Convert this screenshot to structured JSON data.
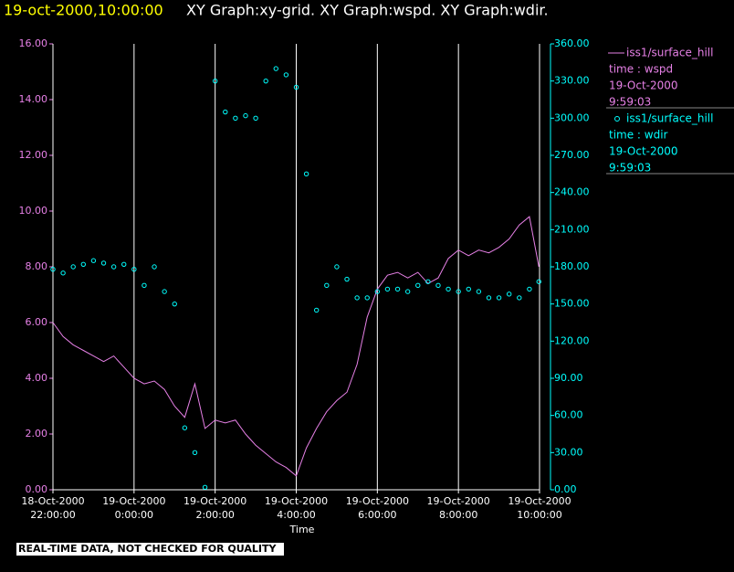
{
  "chart_data": {
    "type": "line",
    "title": "19-oct-2000,10:00:00",
    "subtitle": "XY Graph:xy-grid.  XY Graph:wspd.  XY Graph:wdir.",
    "x_label": "Time",
    "footer": "REAL-TIME DATA, NOT CHECKED FOR QUALITY",
    "grid": true,
    "xlim": [
      "2000-10-18T22:00:00",
      "2000-10-19T10:00:00"
    ],
    "xticks": [
      {
        "value": "2000-10-18T22:00:00",
        "label": "18-Oct-2000\n22:00:00"
      },
      {
        "value": "2000-10-19T00:00:00",
        "label": "19-Oct-2000\n0:00:00"
      },
      {
        "value": "2000-10-19T02:00:00",
        "label": "19-Oct-2000\n2:00:00"
      },
      {
        "value": "2000-10-19T04:00:00",
        "label": "19-Oct-2000\n4:00:00"
      },
      {
        "value": "2000-10-19T06:00:00",
        "label": "19-Oct-2000\n6:00:00"
      },
      {
        "value": "2000-10-19T08:00:00",
        "label": "19-Oct-2000\n8:00:00"
      },
      {
        "value": "2000-10-19T10:00:00",
        "label": "19-Oct-2000\n10:00:00"
      }
    ],
    "ylim": [
      0,
      16
    ],
    "yticks": [
      {
        "value": 0,
        "label": "0.00"
      },
      {
        "value": 2,
        "label": "2.00"
      },
      {
        "value": 4,
        "label": "4.00"
      },
      {
        "value": 6,
        "label": "6.00"
      },
      {
        "value": 8,
        "label": "8.00"
      },
      {
        "value": 10,
        "label": "10.00"
      },
      {
        "value": 12,
        "label": "12.00"
      },
      {
        "value": 14,
        "label": "14.00"
      },
      {
        "value": 16,
        "label": "16.00"
      }
    ],
    "y2lim": [
      0,
      360
    ],
    "y2ticks": [
      {
        "value": 0,
        "label": "0.00"
      },
      {
        "value": 30,
        "label": "30.00"
      },
      {
        "value": 60,
        "label": "60.00"
      },
      {
        "value": 90,
        "label": "90.00"
      },
      {
        "value": 120,
        "label": "120.00"
      },
      {
        "value": 150,
        "label": "150.00"
      },
      {
        "value": 180,
        "label": "180.00"
      },
      {
        "value": 210,
        "label": "210.00"
      },
      {
        "value": 240,
        "label": "240.00"
      },
      {
        "value": 270,
        "label": "270.00"
      },
      {
        "value": 300,
        "label": "300.00"
      },
      {
        "value": 330,
        "label": "330.00"
      },
      {
        "value": 360,
        "label": "360.00"
      }
    ],
    "x": [
      "2000-10-18T22:00:00",
      "2000-10-18T22:15:00",
      "2000-10-18T22:30:00",
      "2000-10-18T22:45:00",
      "2000-10-18T23:00:00",
      "2000-10-18T23:15:00",
      "2000-10-18T23:30:00",
      "2000-10-18T23:45:00",
      "2000-10-19T00:00:00",
      "2000-10-19T00:15:00",
      "2000-10-19T00:30:00",
      "2000-10-19T00:45:00",
      "2000-10-19T01:00:00",
      "2000-10-19T01:15:00",
      "2000-10-19T01:30:00",
      "2000-10-19T01:45:00",
      "2000-10-19T02:00:00",
      "2000-10-19T02:15:00",
      "2000-10-19T02:30:00",
      "2000-10-19T02:45:00",
      "2000-10-19T03:00:00",
      "2000-10-19T03:15:00",
      "2000-10-19T03:30:00",
      "2000-10-19T03:45:00",
      "2000-10-19T04:00:00",
      "2000-10-19T04:15:00",
      "2000-10-19T04:30:00",
      "2000-10-19T04:45:00",
      "2000-10-19T05:00:00",
      "2000-10-19T05:15:00",
      "2000-10-19T05:30:00",
      "2000-10-19T05:45:00",
      "2000-10-19T06:00:00",
      "2000-10-19T06:15:00",
      "2000-10-19T06:30:00",
      "2000-10-19T06:45:00",
      "2000-10-19T07:00:00",
      "2000-10-19T07:15:00",
      "2000-10-19T07:30:00",
      "2000-10-19T07:45:00",
      "2000-10-19T08:00:00",
      "2000-10-19T08:15:00",
      "2000-10-19T08:30:00",
      "2000-10-19T08:45:00",
      "2000-10-19T09:00:00",
      "2000-10-19T09:15:00",
      "2000-10-19T09:30:00",
      "2000-10-19T09:45:00",
      "2000-10-19T09:59:00"
    ],
    "series": [
      {
        "name": "iss1/surface_hill",
        "legend_lines": [
          "time : wspd",
          "19-Oct-2000",
          "9:59:03"
        ],
        "color": "#e680e6",
        "axis": "y",
        "values": [
          6.0,
          5.5,
          5.2,
          5.0,
          4.8,
          4.6,
          4.8,
          4.4,
          4.0,
          3.8,
          3.9,
          3.6,
          3.0,
          2.6,
          3.8,
          2.2,
          2.5,
          2.4,
          2.5,
          2.0,
          1.6,
          1.3,
          1.0,
          0.8,
          0.5,
          1.5,
          2.2,
          2.8,
          3.2,
          3.5,
          4.5,
          6.2,
          7.2,
          7.7,
          7.8,
          7.6,
          7.8,
          7.4,
          7.6,
          8.3,
          8.6,
          8.4,
          8.6,
          8.5,
          8.7,
          9.0,
          9.5,
          9.8,
          8.0
        ]
      },
      {
        "name": "iss1/surface_hill",
        "legend_lines": [
          "time : wdir",
          "19-Oct-2000",
          "9:59:03"
        ],
        "color": "#00ffff",
        "axis": "y2",
        "marker": "circle",
        "values": [
          178,
          175,
          180,
          182,
          185,
          183,
          180,
          182,
          178,
          165,
          180,
          160,
          150,
          50,
          30,
          2,
          330,
          305,
          300,
          302,
          300,
          330,
          340,
          335,
          325,
          255,
          145,
          165,
          180,
          170,
          155,
          155,
          160,
          162,
          162,
          160,
          165,
          168,
          165,
          162,
          160,
          162,
          160,
          155,
          155,
          158,
          155,
          162,
          168
        ]
      }
    ]
  }
}
